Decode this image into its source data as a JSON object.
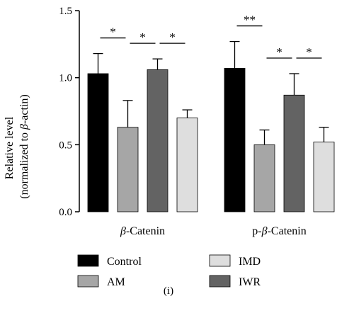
{
  "chart_data": {
    "type": "bar",
    "ylabel_line1": "Relative level",
    "ylabel_line2_prefix": "(normalized to ",
    "ylabel_line2_symbol": "β",
    "ylabel_line2_suffix": "-actin)",
    "ylim": [
      0,
      1.5
    ],
    "yticks": [
      "0.0",
      "0.5",
      "1.0",
      "1.5"
    ],
    "grid": false,
    "groups": [
      {
        "symbol": "β",
        "prefix": "",
        "suffix": "-Catenin"
      },
      {
        "symbol": "β",
        "prefix": "p-",
        "suffix": "-Catenin"
      }
    ],
    "series": [
      {
        "name": "Control",
        "color": "#000000",
        "values": [
          1.03,
          1.07
        ],
        "errors": [
          0.15,
          0.2
        ]
      },
      {
        "name": "AM",
        "color": "#a6a6a6",
        "values": [
          0.63,
          0.5
        ],
        "errors": [
          0.2,
          0.11
        ]
      },
      {
        "name": "IWR",
        "color": "#636363",
        "values": [
          1.06,
          0.87
        ],
        "errors": [
          0.08,
          0.16
        ]
      },
      {
        "name": "IMD",
        "color": "#dedede",
        "values": [
          0.7,
          0.52
        ],
        "errors": [
          0.06,
          0.11
        ]
      }
    ],
    "significance": [
      {
        "group": 0,
        "from": 0,
        "to": 1,
        "label": "*"
      },
      {
        "group": 0,
        "from": 1,
        "to": 2,
        "label": "*"
      },
      {
        "group": 0,
        "from": 2,
        "to": 3,
        "label": "*"
      },
      {
        "group": 1,
        "from": 0,
        "to": 1,
        "label": "**"
      },
      {
        "group": 1,
        "from": 1,
        "to": 2,
        "label": "*"
      },
      {
        "group": 1,
        "from": 2,
        "to": 3,
        "label": "*"
      }
    ],
    "legend_order": [
      "Control",
      "IMD",
      "AM",
      "IWR"
    ],
    "legend_placement": "bottom",
    "panel_label": "(i)"
  }
}
